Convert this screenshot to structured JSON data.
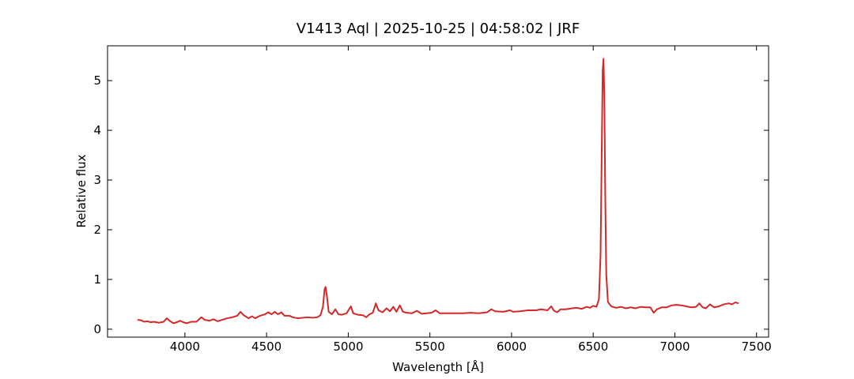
{
  "chart_data": {
    "type": "line",
    "title": "V1413 Aql | 2025-10-25 | 04:58:02 | JRF",
    "x_label": "Wavelength [Å]",
    "y_label": "Relative flux",
    "x": [
      3710,
      3730,
      3750,
      3770,
      3790,
      3810,
      3840,
      3870,
      3889,
      3910,
      3930,
      3950,
      3970,
      3990,
      4010,
      4040,
      4070,
      4101,
      4120,
      4150,
      4175,
      4200,
      4230,
      4260,
      4290,
      4320,
      4340,
      4360,
      4390,
      4410,
      4430,
      4460,
      4490,
      4510,
      4530,
      4550,
      4570,
      4590,
      4610,
      4640,
      4660,
      4690,
      4720,
      4750,
      4780,
      4810,
      4830,
      4845,
      4855,
      4861,
      4870,
      4880,
      4900,
      4921,
      4940,
      4960,
      4990,
      5016,
      5030,
      5060,
      5090,
      5110,
      5130,
      5150,
      5169,
      5185,
      5210,
      5235,
      5255,
      5276,
      5295,
      5316,
      5335,
      5360,
      5390,
      5420,
      5450,
      5480,
      5510,
      5535,
      5560,
      5600,
      5650,
      5700,
      5750,
      5800,
      5850,
      5876,
      5900,
      5950,
      5990,
      6010,
      6050,
      6100,
      6150,
      6180,
      6220,
      6243,
      6260,
      6280,
      6300,
      6330,
      6370,
      6400,
      6430,
      6460,
      6480,
      6500,
      6520,
      6535,
      6545,
      6552,
      6558,
      6563,
      6568,
      6574,
      6580,
      6590,
      6610,
      6640,
      6670,
      6700,
      6730,
      6760,
      6790,
      6820,
      6850,
      6870,
      6890,
      6920,
      6950,
      6980,
      7010,
      7040,
      7070,
      7100,
      7130,
      7150,
      7170,
      7190,
      7215,
      7240,
      7270,
      7300,
      7330,
      7350,
      7370,
      7390
    ],
    "series": [
      {
        "color": "#d62728",
        "values": [
          0.19,
          0.18,
          0.15,
          0.16,
          0.14,
          0.15,
          0.13,
          0.15,
          0.22,
          0.16,
          0.12,
          0.14,
          0.17,
          0.14,
          0.12,
          0.15,
          0.15,
          0.24,
          0.19,
          0.17,
          0.2,
          0.16,
          0.19,
          0.22,
          0.24,
          0.27,
          0.35,
          0.28,
          0.22,
          0.26,
          0.22,
          0.27,
          0.3,
          0.34,
          0.3,
          0.35,
          0.3,
          0.34,
          0.27,
          0.27,
          0.24,
          0.22,
          0.23,
          0.24,
          0.23,
          0.24,
          0.28,
          0.45,
          0.8,
          0.85,
          0.65,
          0.35,
          0.3,
          0.4,
          0.3,
          0.29,
          0.32,
          0.46,
          0.32,
          0.29,
          0.28,
          0.24,
          0.3,
          0.33,
          0.52,
          0.38,
          0.34,
          0.42,
          0.36,
          0.45,
          0.35,
          0.48,
          0.35,
          0.33,
          0.32,
          0.37,
          0.31,
          0.32,
          0.33,
          0.38,
          0.32,
          0.32,
          0.32,
          0.32,
          0.33,
          0.32,
          0.34,
          0.4,
          0.36,
          0.35,
          0.38,
          0.35,
          0.36,
          0.38,
          0.38,
          0.4,
          0.38,
          0.46,
          0.37,
          0.34,
          0.4,
          0.4,
          0.42,
          0.43,
          0.41,
          0.45,
          0.43,
          0.47,
          0.45,
          0.6,
          1.5,
          3.5,
          5.2,
          5.44,
          4.7,
          2.6,
          1.1,
          0.55,
          0.46,
          0.43,
          0.45,
          0.42,
          0.44,
          0.42,
          0.45,
          0.44,
          0.44,
          0.33,
          0.4,
          0.44,
          0.44,
          0.48,
          0.49,
          0.48,
          0.46,
          0.44,
          0.45,
          0.52,
          0.44,
          0.42,
          0.5,
          0.44,
          0.46,
          0.5,
          0.52,
          0.5,
          0.54,
          0.52
        ]
      }
    ],
    "xlim": [
      3526,
      7574
    ],
    "ylim": [
      -0.16,
      5.7
    ],
    "xticks": [
      4000,
      4500,
      5000,
      5500,
      6000,
      6500,
      7000,
      7500
    ],
    "yticks": [
      0,
      1,
      2,
      3,
      4,
      5
    ]
  }
}
